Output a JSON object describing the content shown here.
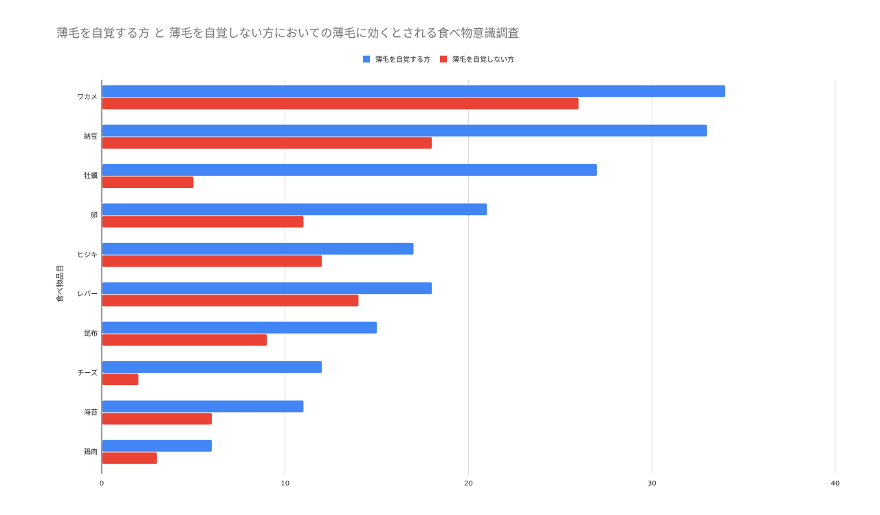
{
  "chart_data": {
    "type": "bar",
    "orientation": "horizontal",
    "title": "薄毛を自覚する方 と 薄毛を自覚しない方においての薄毛に効くとされる食べ物意識調査",
    "xlabel": "",
    "ylabel": "食べ物品目",
    "categories": [
      "ワカメ",
      "納豆",
      "牡蠣",
      "卵",
      "ヒジキ",
      "レバー",
      "昆布",
      "チーズ",
      "海苔",
      "鶏肉"
    ],
    "series": [
      {
        "name": "薄毛を自覚する方",
        "color": "#4285f4",
        "values": [
          34,
          33,
          27,
          21,
          17,
          18,
          15,
          12,
          11,
          6
        ]
      },
      {
        "name": "薄毛を自覚しない方",
        "color": "#ea4335",
        "values": [
          26,
          18,
          5,
          11,
          12,
          14,
          9,
          2,
          6,
          3
        ]
      }
    ],
    "xlim": [
      0,
      40
    ],
    "xticks": [
      "0",
      "10",
      "20",
      "30",
      "40"
    ],
    "grid": true,
    "legend_position": "top"
  }
}
